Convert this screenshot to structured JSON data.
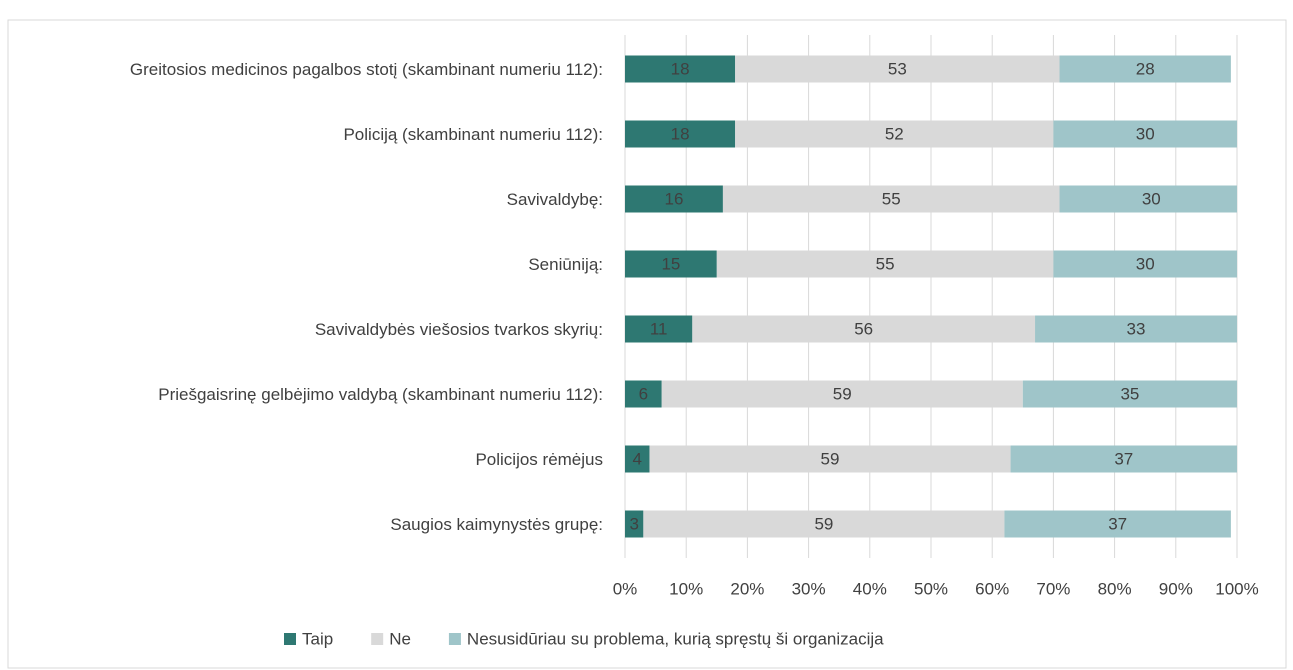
{
  "chart_data": {
    "type": "bar",
    "orientation": "horizontal",
    "stacked": true,
    "categories": [
      "Greitosios medicinos pagalbos stotį (skambinant numeriu 112):",
      "Policiją (skambinant numeriu 112):",
      "Savivaldybę:",
      "Seniūniją:",
      "Savivaldybės viešosios tvarkos skyrių:",
      "Priešgaisrinę gelbėjimo valdybą (skambinant numeriu 112):",
      "Policijos rėmėjus",
      "Saugios kaimynystės grupę:"
    ],
    "series": [
      {
        "name": "Taip",
        "color": "#2e7872",
        "values": [
          18,
          18,
          16,
          15,
          11,
          6,
          4,
          3
        ]
      },
      {
        "name": "Ne",
        "color": "#d9d9d9",
        "values": [
          53,
          52,
          55,
          55,
          56,
          59,
          59,
          59
        ]
      },
      {
        "name": "Nesusidūriau su problema, kurią spręstų ši organizacija",
        "color": "#9fc5c9",
        "values": [
          28,
          30,
          30,
          30,
          33,
          35,
          37,
          37
        ]
      }
    ],
    "xlim": [
      0,
      100
    ],
    "xticks": [
      {
        "value": 0,
        "label": "0%"
      },
      {
        "value": 10,
        "label": "10%"
      },
      {
        "value": 20,
        "label": "20%"
      },
      {
        "value": 30,
        "label": "30%"
      },
      {
        "value": 40,
        "label": "40%"
      },
      {
        "value": 50,
        "label": "50%"
      },
      {
        "value": 60,
        "label": "60%"
      },
      {
        "value": 70,
        "label": "70%"
      },
      {
        "value": 80,
        "label": "80%"
      },
      {
        "value": 90,
        "label": "90%"
      },
      {
        "value": 100,
        "label": "100%"
      }
    ],
    "grid": true,
    "legend": "bottom"
  }
}
